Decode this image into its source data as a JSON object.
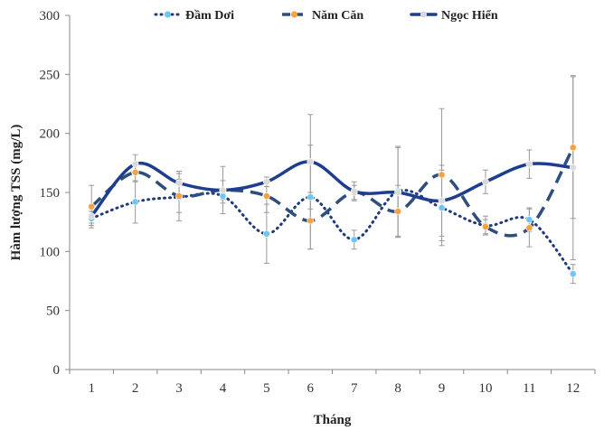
{
  "chart_data": {
    "type": "line",
    "title": "",
    "xlabel": "Tháng",
    "ylabel": "Hàm lượng TSS (mg/L)",
    "ylim": [
      0,
      300
    ],
    "yticks": [
      0,
      50,
      100,
      150,
      200,
      250,
      300
    ],
    "categories": [
      "1",
      "2",
      "3",
      "4",
      "5",
      "6",
      "7",
      "8",
      "9",
      "10",
      "11",
      "12"
    ],
    "grid": false,
    "legend_position": "top",
    "series": [
      {
        "name": "Đầm Dơi",
        "color": "#1f3a7a",
        "marker_color": "#6ec6f5",
        "line_style": "dotted",
        "values": [
          128,
          142,
          146,
          147,
          115,
          146,
          110,
          151,
          137,
          122,
          127,
          81
        ],
        "error": [
          6,
          18,
          20,
          6,
          25,
          44,
          8,
          38,
          32,
          8,
          10,
          8
        ]
      },
      {
        "name": "Năm Căn",
        "color": "#2e4f7e",
        "marker_color": "#f4a340",
        "line_style": "dashed",
        "values": [
          138,
          167,
          147,
          152,
          147,
          126,
          150,
          134,
          165,
          121,
          120,
          188
        ],
        "error": [
          18,
          8,
          14,
          20,
          14,
          24,
          6,
          22,
          56,
          6,
          16,
          60
        ]
      },
      {
        "name": "Ngọc Hiển",
        "color": "#1d3d8f",
        "marker_color": "#d9d9d9",
        "line_style": "solid",
        "values": [
          130,
          174,
          158,
          152,
          159,
          176,
          151,
          150,
          143,
          159,
          174,
          171
        ],
        "error": [
          6,
          8,
          10,
          8,
          4,
          40,
          8,
          38,
          30,
          10,
          12,
          78
        ]
      }
    ]
  }
}
